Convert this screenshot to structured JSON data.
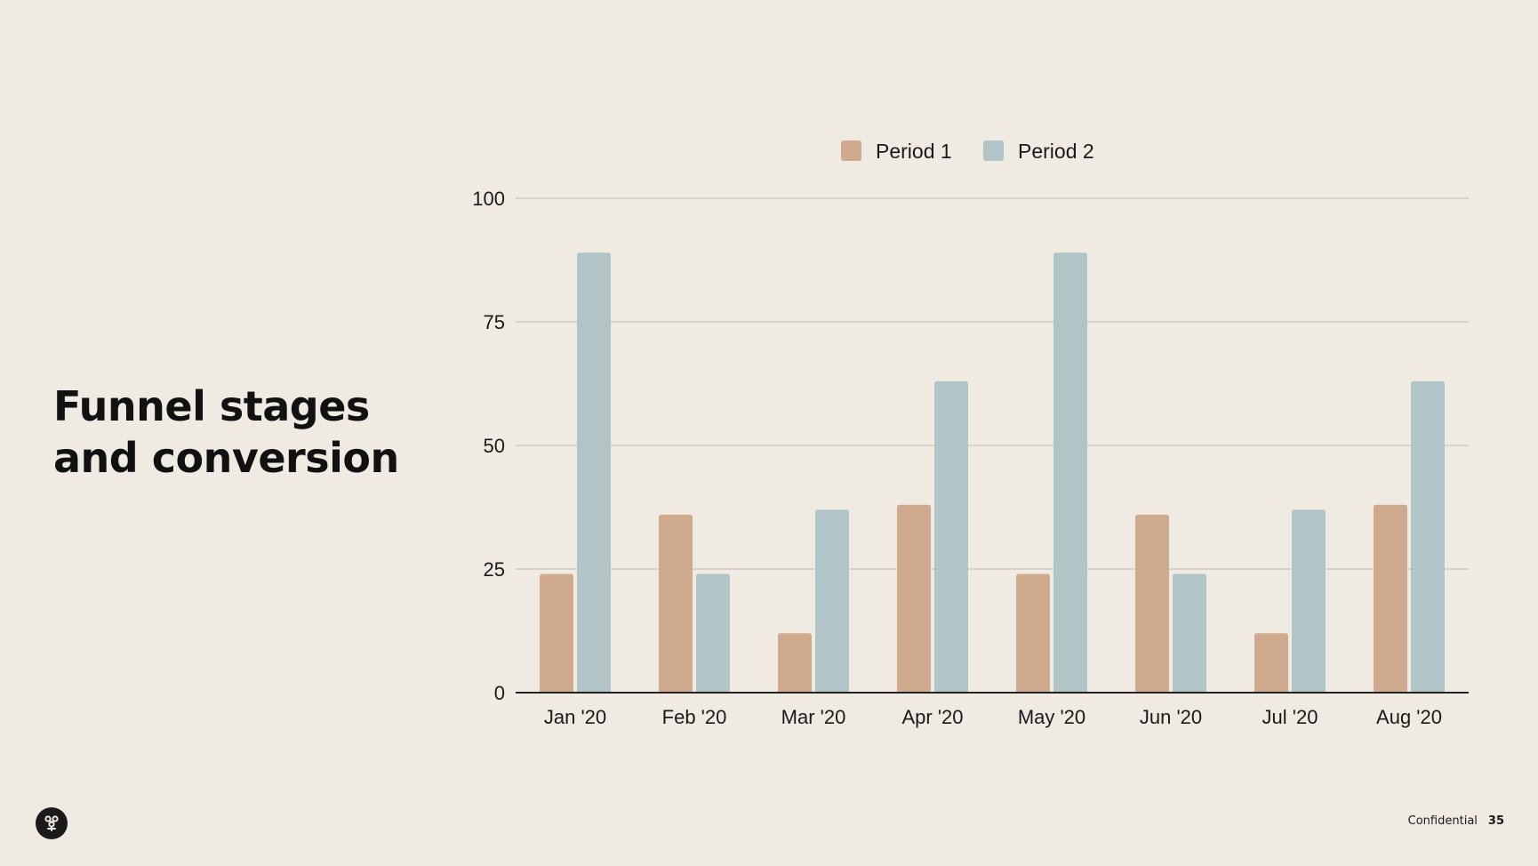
{
  "slide": {
    "title_line1": "Funnel stages",
    "title_line2": "and conversion",
    "footer_label": "Confidential",
    "page_number": "35",
    "logo_icon": "tree-logo-icon"
  },
  "colors": {
    "background": "#efebe3",
    "period1": "#d0aa8f",
    "period2": "#b1c5c7",
    "grid": "#cfcbc4",
    "axis": "#222222",
    "text": "#1a1a1a"
  },
  "chart_data": {
    "type": "bar",
    "title": "",
    "xlabel": "",
    "ylabel": "",
    "categories": [
      "Jan '20",
      "Feb '20",
      "Mar '20",
      "Apr '20",
      "May '20",
      "Jun '20",
      "Jul '20",
      "Aug '20"
    ],
    "series": [
      {
        "name": "Period 1",
        "values": [
          24,
          36,
          12,
          38,
          24,
          36,
          12,
          38
        ]
      },
      {
        "name": "Period 2",
        "values": [
          89,
          24,
          37,
          63,
          89,
          24,
          37,
          63
        ]
      }
    ],
    "ylim": [
      0,
      100
    ],
    "yticks": [
      "0",
      "25",
      "50",
      "75",
      "100"
    ],
    "grid": true,
    "legend_position": "top-center"
  }
}
